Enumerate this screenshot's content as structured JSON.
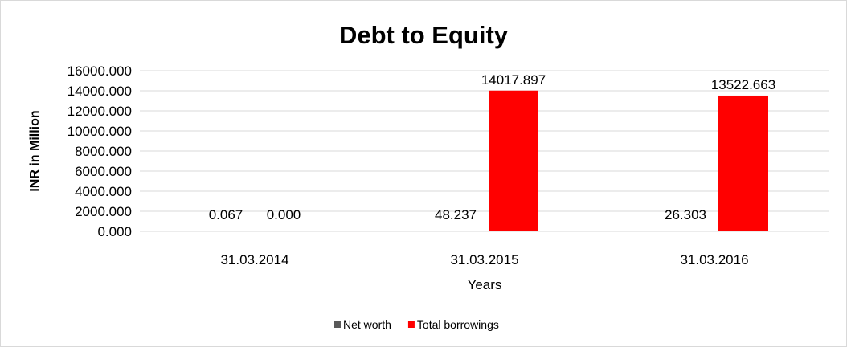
{
  "chart_data": {
    "type": "bar",
    "title": "Debt to Equity",
    "xlabel": "Years",
    "ylabel": "INR in Million",
    "categories": [
      "31.03.2014",
      "31.03.2015",
      "31.03.2016"
    ],
    "series": [
      {
        "name": "Net worth",
        "color": "#595959",
        "values": [
          0.067,
          48.237,
          26.303
        ],
        "labels": [
          "0.067",
          "48.237",
          "26.303"
        ]
      },
      {
        "name": "Total borrowings",
        "color": "#ff0000",
        "values": [
          0.0,
          14017.897,
          13522.663
        ],
        "labels": [
          "0.000",
          "14017.897",
          "13522.663"
        ]
      }
    ],
    "ylim": [
      0,
      16000
    ],
    "yticks": [
      "0.000",
      "2000.000",
      "4000.000",
      "6000.000",
      "8000.000",
      "10000.000",
      "12000.000",
      "14000.000",
      "16000.000"
    ],
    "grid": true,
    "legend": "bottom"
  }
}
